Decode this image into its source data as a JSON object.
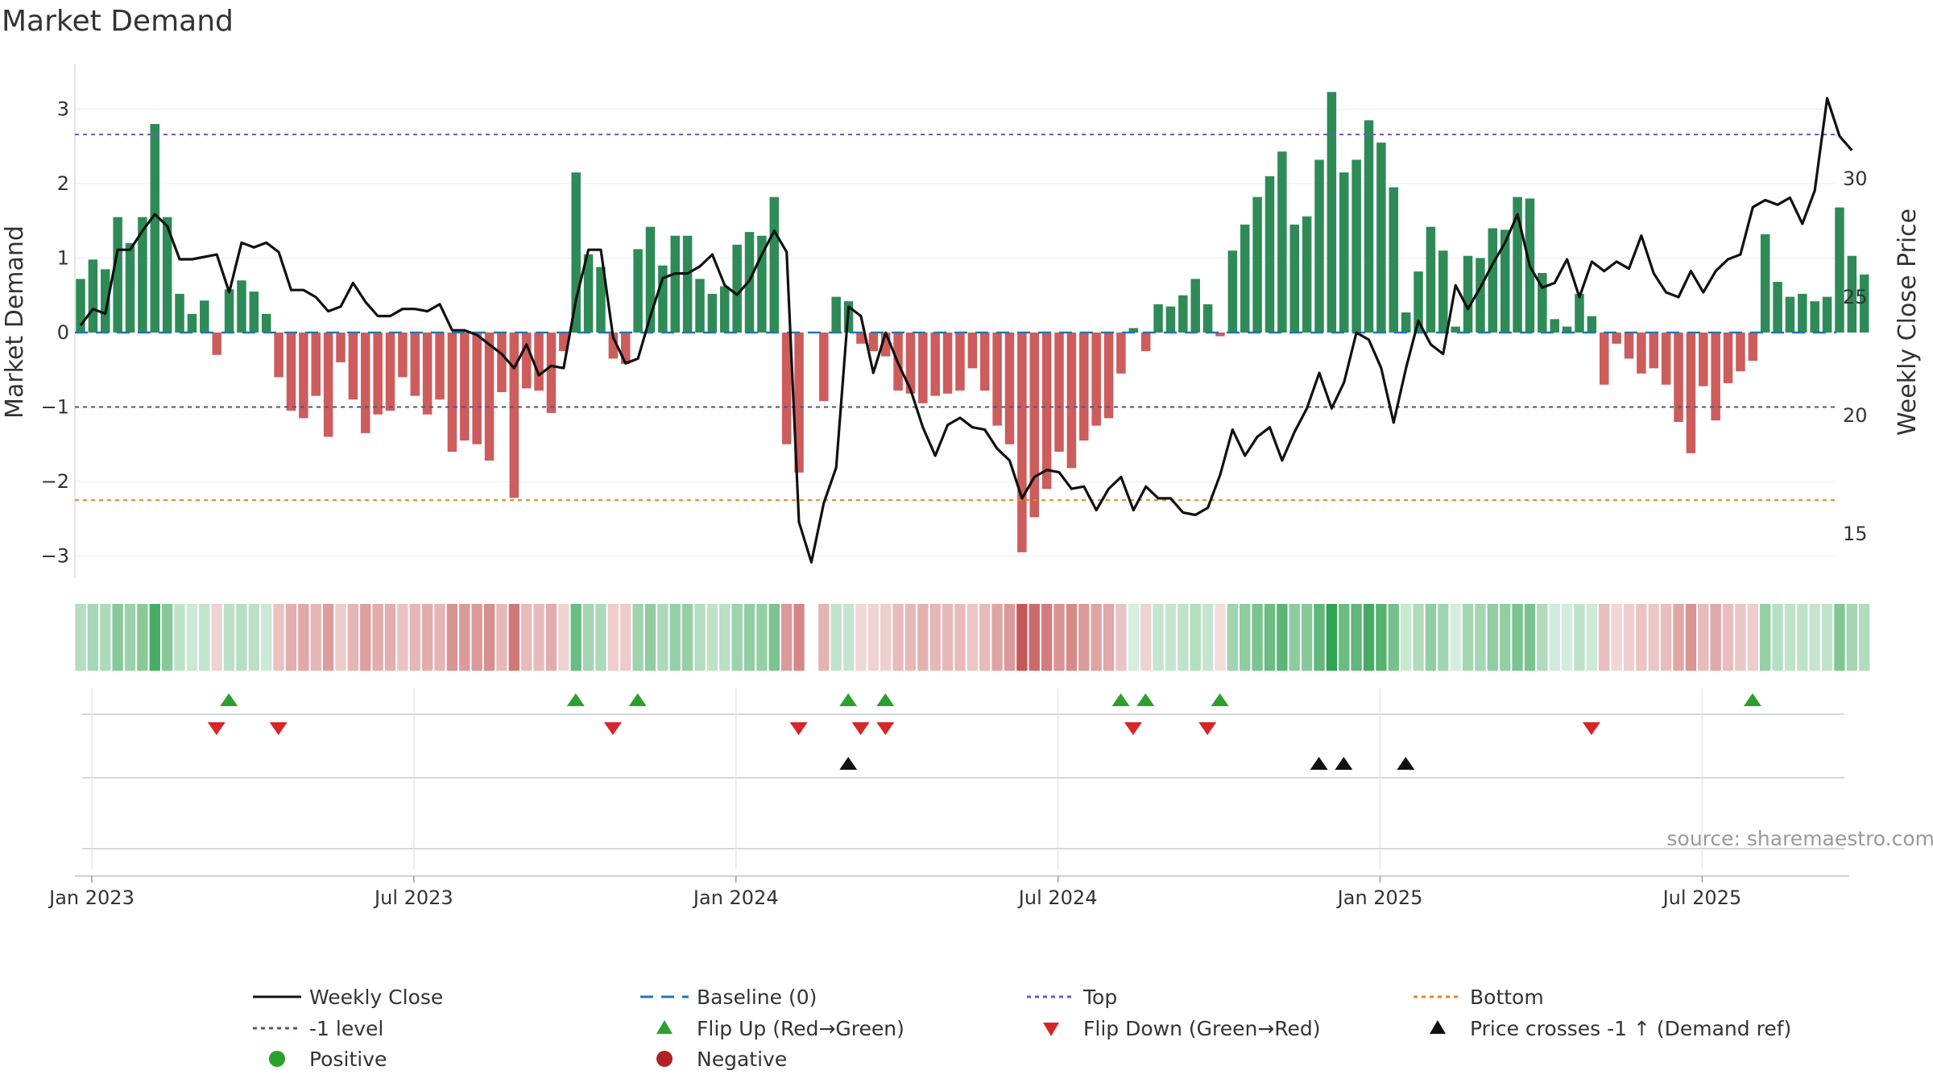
{
  "chart_data": {
    "type": "bar",
    "title": "Market Demand",
    "ylabel": "Market Demand",
    "y2label": "Weekly Close Price",
    "ylim": [
      -3.3,
      3.6
    ],
    "y2lim": [
      13.3,
      34.6
    ],
    "yticks": [
      -3,
      -2,
      -1,
      0,
      1,
      2,
      3
    ],
    "yticklabels": [
      "−3",
      "−2",
      "−1",
      "0",
      "1",
      "2",
      "3"
    ],
    "y2ticks": [
      15,
      20,
      25,
      30
    ],
    "y2ticklabels": [
      "15",
      "20",
      "25",
      "30"
    ],
    "xticks": [
      {
        "week": 0,
        "label": "Jan 2023"
      },
      {
        "week": 26,
        "label": "Jul 2023"
      },
      {
        "week": 52,
        "label": "Jan 2024"
      },
      {
        "week": 78,
        "label": "Jul 2024"
      },
      {
        "week": 104,
        "label": "Jan 2025"
      },
      {
        "week": 130,
        "label": "Jul 2025"
      }
    ],
    "x_start": "2022-12-31",
    "demand": [
      0.72,
      0.98,
      0.85,
      1.55,
      1.2,
      1.55,
      2.8,
      1.55,
      0.52,
      0.25,
      0.43,
      -0.3,
      0.58,
      0.7,
      0.55,
      0.25,
      -0.6,
      -1.05,
      -1.15,
      -0.85,
      -1.4,
      -0.4,
      -0.9,
      -1.35,
      -1.1,
      -1.05,
      -0.6,
      -0.85,
      -1.1,
      -0.9,
      -1.6,
      -1.45,
      -1.5,
      -1.72,
      -0.8,
      -2.22,
      -0.75,
      -0.78,
      -1.08,
      -0.25,
      2.15,
      1.05,
      0.88,
      -0.35,
      -0.42,
      1.12,
      1.42,
      0.9,
      1.3,
      1.3,
      0.72,
      0.52,
      0.62,
      1.18,
      1.35,
      1.3,
      1.82,
      -1.5,
      -1.88,
      0,
      -0.92,
      0.48,
      0.42,
      -0.15,
      -0.25,
      -0.32,
      -0.78,
      -0.82,
      -0.95,
      -0.85,
      -0.82,
      -0.78,
      -0.48,
      -0.78,
      -1.25,
      -1.5,
      -2.95,
      -2.48,
      -2.1,
      -1.6,
      -1.82,
      -1.45,
      -1.25,
      -1.15,
      -0.55,
      0.06,
      -0.25,
      0.38,
      0.35,
      0.5,
      0.72,
      0.38,
      -0.05,
      1.1,
      1.45,
      1.82,
      2.1,
      2.43,
      1.45,
      1.56,
      2.32,
      3.23,
      2.15,
      2.32,
      2.85,
      2.55,
      1.95,
      0.27,
      0.82,
      1.42,
      1.1,
      0.08,
      1.03,
      1.0,
      1.4,
      1.38,
      1.82,
      1.8,
      0.8,
      0.18,
      0.08,
      0.52,
      0.22,
      -0.7,
      -0.15,
      -0.35,
      -0.55,
      -0.48,
      -0.7,
      -1.2,
      -1.62,
      -0.72,
      -1.18,
      -0.68,
      -0.52,
      -0.38,
      1.32,
      0.68,
      0.48,
      0.52,
      0.42,
      0.48,
      1.68,
      1.03,
      0.78
    ],
    "close": [
      23.8,
      24.5,
      24.3,
      27.0,
      27.0,
      27.8,
      28.5,
      28.0,
      26.6,
      26.6,
      26.7,
      26.8,
      25.2,
      27.3,
      27.1,
      27.3,
      26.9,
      25.3,
      25.3,
      25.0,
      24.4,
      24.6,
      25.6,
      24.8,
      24.2,
      24.2,
      24.5,
      24.5,
      24.4,
      24.7,
      23.6,
      23.6,
      23.4,
      23.0,
      22.6,
      22.0,
      23.0,
      21.7,
      22.1,
      22.0,
      24.9,
      27.0,
      27.0,
      23.3,
      22.2,
      22.4,
      24.2,
      25.8,
      26.0,
      26.0,
      26.3,
      26.8,
      25.5,
      25.1,
      25.7,
      26.8,
      27.8,
      26.9,
      15.5,
      13.8,
      16.3,
      17.8,
      24.6,
      24.2,
      21.8,
      23.5,
      22.2,
      21.1,
      19.5,
      18.3,
      19.6,
      19.9,
      19.5,
      19.4,
      18.6,
      18.1,
      16.5,
      17.4,
      17.7,
      17.6,
      16.9,
      17.0,
      16.0,
      16.9,
      17.4,
      16.0,
      17.0,
      16.5,
      16.5,
      15.9,
      15.8,
      16.1,
      17.5,
      19.4,
      18.3,
      19.1,
      19.5,
      18.1,
      19.3,
      20.3,
      21.8,
      20.3,
      21.4,
      23.5,
      23.2,
      22.0,
      19.7,
      22.0,
      24.0,
      23.0,
      22.6,
      25.5,
      24.5,
      25.4,
      26.4,
      27.3,
      28.5,
      26.3,
      25.4,
      25.6,
      26.6,
      25.0,
      26.5,
      26.1,
      26.5,
      26.2,
      27.6,
      26.0,
      25.2,
      25.0,
      26.1,
      25.2,
      26.1,
      26.6,
      26.8,
      28.8,
      29.1,
      28.9,
      29.2,
      28.1,
      29.5,
      33.4,
      31.8,
      31.2
    ]
  },
  "source": "source: sharemaestro.com",
  "legend": {
    "weekly_close": "Weekly Close",
    "baseline": "Baseline (0)",
    "top": "Top",
    "bottom": "Bottom",
    "minus1": "-1 level",
    "flip_up": "Flip Up (Red→Green)",
    "flip_down": "Flip Down (Green→Red)",
    "price_cross": "Price crosses -1 ↑ (Demand ref)",
    "positive": "Positive",
    "negative": "Negative"
  },
  "colors": {
    "pos_bar": "#2e8b57",
    "neg_bar": "#cd5c5c",
    "close": "#111111",
    "baseline": "#1f77b4",
    "top": "#6a5acd",
    "bottom": "#e08a1e",
    "minus1": "#555577",
    "flip_up": "#2ca02c",
    "flip_down": "#d62728",
    "cross": "#111111",
    "positive": "#2ca02c",
    "negative": "#b22222"
  },
  "levels": {
    "top": 2.66,
    "bottom": -2.25,
    "minus1": -1.0
  },
  "flip_up_weeks": [
    11,
    39,
    44,
    61,
    64,
    83,
    85,
    91,
    134
  ],
  "flip_down_weeks": [
    10,
    15,
    42,
    57,
    62,
    64,
    84,
    90,
    121
  ],
  "price_cross_weeks": [
    61,
    99,
    101,
    106
  ]
}
